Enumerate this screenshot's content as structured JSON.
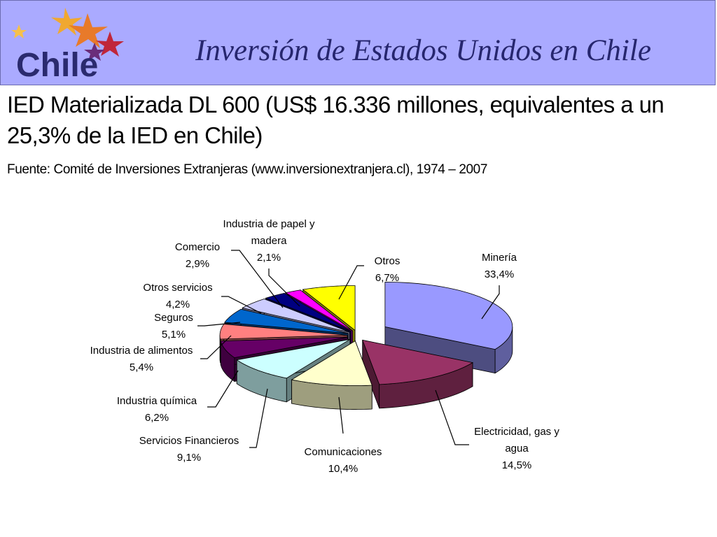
{
  "header": {
    "logo_text": "Chile",
    "title": "Inversión de Estados Unidos en Chile",
    "background_color": "#aaaaff",
    "title_color": "#26266e"
  },
  "subtitle": "IED Materializada DL 600 (US$ 16.336 millones, equivalentes a un 25,3% de la IED en Chile)",
  "source": "Fuente: Comité de Inversiones Extranjeras (www.inversionextranjera.cl), 1974 – 2007",
  "chart_data": {
    "type": "pie",
    "style": "3d-exploded",
    "legend": "none",
    "title": "",
    "slices": [
      {
        "name": "Minería",
        "value": 33.4,
        "label": "33,4%",
        "color": "#9999ff"
      },
      {
        "name": "Electricidad, gas y agua",
        "value": 14.5,
        "label": "14,5%",
        "color": "#993366"
      },
      {
        "name": "Comunicaciones",
        "value": 10.4,
        "label": "10,4%",
        "color": "#ffffcc"
      },
      {
        "name": "Servicios Financieros",
        "value": 9.1,
        "label": "9,1%",
        "color": "#ccffff"
      },
      {
        "name": "Industria química",
        "value": 6.2,
        "label": "6,2%",
        "color": "#660066"
      },
      {
        "name": "Industria de alimentos",
        "value": 5.4,
        "label": "5,4%",
        "color": "#ff8080"
      },
      {
        "name": "Seguros",
        "value": 5.1,
        "label": "5,1%",
        "color": "#0066cc"
      },
      {
        "name": "Otros servicios",
        "value": 4.2,
        "label": "4,2%",
        "color": "#ccccff"
      },
      {
        "name": "Comercio",
        "value": 2.9,
        "label": "2,9%",
        "color": "#000080"
      },
      {
        "name": "Industria de papel y madera",
        "value": 2.1,
        "label": "2,1%",
        "color": "#ff00ff"
      },
      {
        "name": "Otros",
        "value": 6.7,
        "label": "6,7%",
        "color": "#ffff00"
      }
    ]
  }
}
